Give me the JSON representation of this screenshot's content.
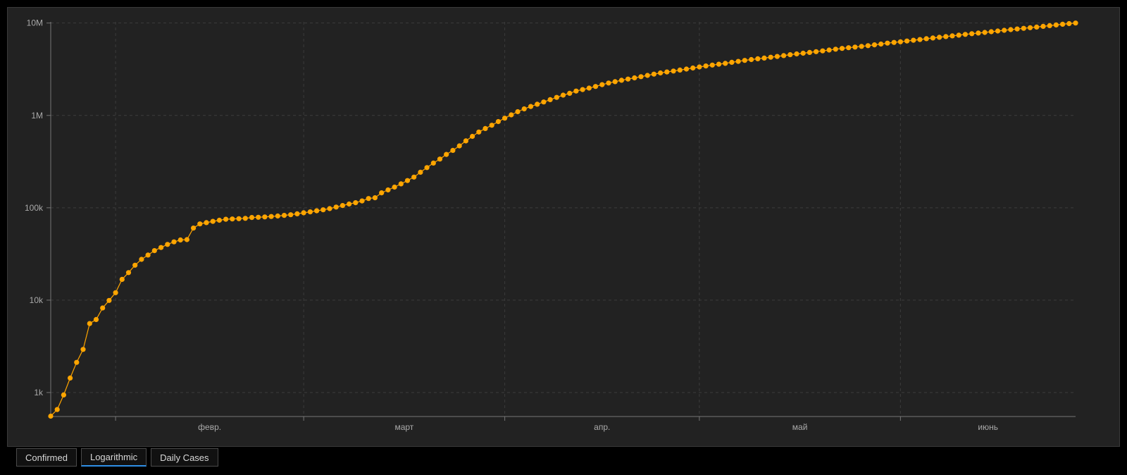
{
  "chart_data": {
    "type": "scatter",
    "title": "",
    "xlabel": "",
    "ylabel": "",
    "y_scale": "log",
    "ylim": [
      550,
      10300000
    ],
    "xlim": [
      "2020-01-22",
      "2020-06-28"
    ],
    "x_tick_labels": [
      "февр.",
      "март",
      "апр.",
      "май",
      "июнь"
    ],
    "y_tick_labels": [
      "1k",
      "10k",
      "100k",
      "1M",
      "10M"
    ],
    "grid": true,
    "legend": "none",
    "colors": {
      "series": "#ffa500",
      "background": "#222222",
      "grid": "#3c3c3c",
      "axis": "#777777",
      "tick_text": "#aaaaaa"
    },
    "series": [
      {
        "start_date": "2020-01-22",
        "step_days": 1,
        "values": [
          555,
          654,
          941,
          1434,
          2118,
          2927,
          5578,
          6166,
          8234,
          9927,
          12038,
          16787,
          19881,
          23892,
          27635,
          30794,
          34391,
          37120,
          40150,
          42762,
          44802,
          45221,
          60368,
          66885,
          69030,
          71224,
          73258,
          75136,
          75639,
          76197,
          76819,
          78572,
          78958,
          79561,
          80406,
          81388,
          82746,
          84112,
          86011,
          88369,
          90306,
          92840,
          95120,
          97886,
          101801,
          105847,
          109821,
          113590,
          118620,
          125875,
          128352,
          145205,
          156101,
          167454,
          181574,
          197102,
          214821,
          242570,
          272208,
          304507,
          336953,
          378235,
          418045,
          467653,
          529591,
          593291,
          660706,
          720117,
          782365,
          857487,
          932605,
          1013466,
          1095917,
          1176060,
          1249754,
          1321481,
          1396476,
          1480202,
          1565278,
          1657526,
          1735650,
          1834721,
          1904838,
          1976191,
          2056054,
          2152437,
          2240190,
          2317759,
          2401378,
          2472259,
          2549294,
          2624074,
          2708885,
          2795731,
          2881140,
          2955033,
          3023722,
          3097229,
          3172287,
          3256910,
          3343777,
          3427343,
          3506729,
          3583055,
          3662691,
          3755341,
          3845718,
          3938064,
          4024009,
          4101699,
          4177502,
          4261747,
          4347018,
          4442163,
          4542347,
          4634068,
          4713620,
          4801943,
          4897492,
          4996472,
          5102424,
          5210817,
          5310362,
          5407613,
          5495061,
          5589626,
          5691790,
          5808946,
          5924275,
          6059017,
          6166946,
          6265852,
          6386011,
          6508252,
          6632985,
          6764798,
          6891215,
          7007221,
          7132335,
          7258990,
          7391900,
          7534121,
          7672335,
          7795525,
          7917905,
          8049013,
          8203011,
          8348346,
          8488071,
          8628922,
          8768434,
          8895011,
          9037883,
          9199233,
          9359622,
          9536000,
          9708000,
          9865000,
          10000000
        ]
      }
    ]
  },
  "tabs": [
    {
      "label": "Confirmed",
      "active": false
    },
    {
      "label": "Logarithmic",
      "active": true
    },
    {
      "label": "Daily Cases",
      "active": false
    }
  ]
}
